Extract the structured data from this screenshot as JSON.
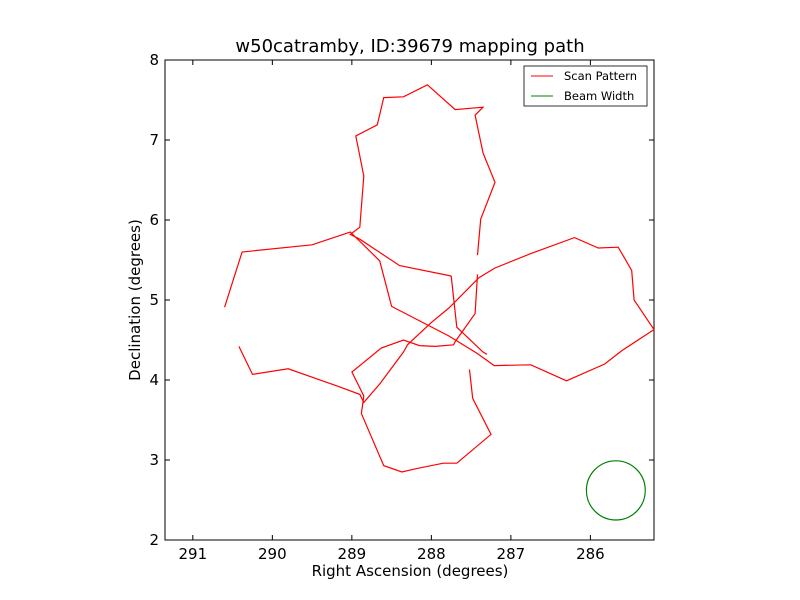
{
  "chart_data": {
    "type": "line",
    "title": "w50catramby, ID:39679 mapping path",
    "xlabel": "Right Ascension (degrees)",
    "ylabel": "Declination (degrees)",
    "xlim": [
      291.35,
      285.2
    ],
    "ylim": [
      2,
      8
    ],
    "x_reversed": true,
    "xticks": [
      291,
      290,
      289,
      288,
      287,
      286
    ],
    "yticks": [
      2,
      3,
      4,
      5,
      6,
      7,
      8
    ],
    "grid": false,
    "legend_position": "top-right",
    "series": [
      {
        "name": "Scan Pattern",
        "color": "#ff0000",
        "x": [
          290.6,
          290.38,
          289.5,
          289.02,
          288.65,
          288.5,
          287.78,
          287.42,
          287.21,
          286.75,
          286.3,
          285.82,
          285.6,
          285.2,
          285.45,
          285.48,
          285.65,
          285.9,
          286.2,
          286.75,
          287.2,
          287.4,
          287.78,
          288.0,
          288.3,
          288.35,
          288.65,
          288.85,
          288.9,
          289.2,
          289.8,
          290.25,
          290.42
        ],
        "y": [
          4.91,
          5.6,
          5.69,
          5.85,
          5.49,
          4.92,
          4.55,
          4.33,
          4.18,
          4.19,
          3.99,
          4.2,
          4.37,
          4.63,
          5.0,
          5.37,
          5.66,
          5.65,
          5.78,
          5.58,
          5.4,
          5.28,
          4.9,
          4.72,
          4.44,
          4.35,
          3.95,
          3.72,
          3.82,
          3.93,
          4.14,
          4.07,
          4.42
        ]
      },
      {
        "name": "Beam Width",
        "color": "#008000",
        "center": [
          285.68,
          2.62
        ],
        "radius": 0.37
      },
      {
        "name": "",
        "color": "#ff0000",
        "x": [
          287.42,
          287.45,
          287.7,
          287.72,
          287.95,
          288.15,
          288.35,
          288.63,
          289.0,
          288.85,
          288.88,
          288.6,
          288.37,
          288.2,
          287.85,
          287.68,
          287.25,
          287.48,
          287.52
        ],
        "y": [
          5.32,
          4.83,
          4.48,
          4.44,
          4.42,
          4.43,
          4.5,
          4.4,
          4.1,
          3.8,
          3.58,
          2.93,
          2.85,
          2.89,
          2.96,
          2.96,
          3.32,
          3.77,
          4.13
        ]
      },
      {
        "name": "",
        "color": "#ff0000",
        "x": [
          287.42,
          287.38,
          287.2,
          287.35,
          287.45,
          287.35,
          287.7,
          288.05,
          288.35,
          288.6,
          288.68,
          288.95,
          288.85,
          288.9,
          289.02,
          288.9,
          288.4,
          287.75
        ],
        "y": [
          5.56,
          6.01,
          6.47,
          6.84,
          7.31,
          7.41,
          7.38,
          7.69,
          7.54,
          7.53,
          7.19,
          7.05,
          6.55,
          5.91,
          5.82,
          5.76,
          5.43,
          5.3
        ]
      },
      {
        "name": "",
        "color": "#ff0000",
        "x": [
          287.75,
          287.68,
          287.35,
          287.3
        ],
        "y": [
          5.3,
          4.66,
          4.35,
          4.32
        ]
      }
    ]
  }
}
